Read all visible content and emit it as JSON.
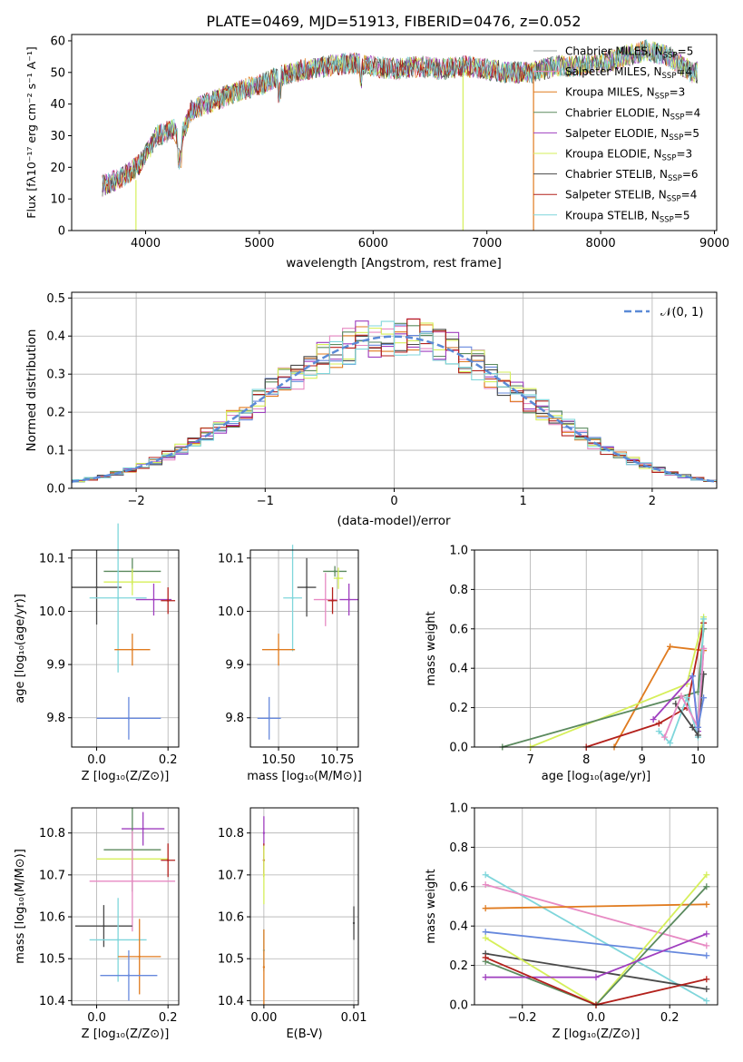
{
  "figure": {
    "title": "PLATE=0469, MJD=51913, FIBERID=0476, z=0.052"
  },
  "colors": {
    "chabrier_miles": "#9aa3a3",
    "salpeter_miles": "#e78ac3",
    "kroupa_miles": "#e07b1f",
    "chabrier_elodie": "#5b8a5e",
    "salpeter_elodie": "#9f3fbf",
    "kroupa_elodie": "#d6ef5a",
    "chabrier_stelib": "#4a4a4a",
    "salpeter_stelib": "#b3211c",
    "kroupa_stelib": "#7fd6db",
    "normal_curve": "#5b8ad6",
    "blue_extra": "#6688dd"
  },
  "chart_data": [
    {
      "type": "line",
      "panel": "spectrum",
      "title": "PLATE=0469, MJD=51913, FIBERID=0476, z=0.052",
      "xlabel": "wavelength [Angstrom, rest frame]",
      "ylabel": "Flux [fλ10⁻¹⁷ erg cm⁻² s⁻¹ A⁻¹]",
      "xlim": [
        3350,
        9020
      ],
      "ylim": [
        0,
        62
      ],
      "xticks": [
        "4000",
        "5000",
        "6000",
        "7000",
        "8000",
        "9000"
      ],
      "yticks": [
        "0",
        "10",
        "20",
        "30",
        "40",
        "50",
        "60"
      ],
      "legend": "top-right",
      "series": [
        {
          "name": "Chabrier MILES, N",
          "sub": "SSP",
          "tail": "=5",
          "color_key": "chabrier_miles"
        },
        {
          "name": "Salpeter MILES, N",
          "sub": "SSP",
          "tail": "=4",
          "color_key": "salpeter_miles"
        },
        {
          "name": "Kroupa MILES, N",
          "sub": "SSP",
          "tail": "=3",
          "color_key": "kroupa_miles"
        },
        {
          "name": "Chabrier ELODIE, N",
          "sub": "SSP",
          "tail": "=4",
          "color_key": "chabrier_elodie"
        },
        {
          "name": "Salpeter ELODIE, N",
          "sub": "SSP",
          "tail": "=5",
          "color_key": "salpeter_elodie"
        },
        {
          "name": "Kroupa ELODIE, N",
          "sub": "SSP",
          "tail": "=3",
          "color_key": "kroupa_elodie"
        },
        {
          "name": "Chabrier STELIB, N",
          "sub": "SSP",
          "tail": "=6",
          "color_key": "chabrier_stelib"
        },
        {
          "name": "Salpeter STELIB, N",
          "sub": "SSP",
          "tail": "=4",
          "color_key": "salpeter_stelib"
        },
        {
          "name": "Kroupa STELIB, N",
          "sub": "SSP",
          "tail": "=5",
          "color_key": "kroupa_stelib"
        }
      ],
      "continuum": [
        [
          3620,
          14
        ],
        [
          3800,
          17
        ],
        [
          3950,
          21
        ],
        [
          4100,
          30
        ],
        [
          4250,
          32
        ],
        [
          4300,
          28
        ],
        [
          4400,
          38
        ],
        [
          4600,
          41
        ],
        [
          4800,
          44
        ],
        [
          5000,
          46
        ],
        [
          5200,
          49
        ],
        [
          5400,
          51
        ],
        [
          5600,
          52
        ],
        [
          5800,
          53
        ],
        [
          6000,
          52
        ],
        [
          6200,
          51
        ],
        [
          6400,
          52
        ],
        [
          6600,
          51
        ],
        [
          6800,
          52
        ],
        [
          7000,
          51
        ],
        [
          7200,
          50
        ],
        [
          7400,
          50
        ],
        [
          7600,
          52
        ],
        [
          7800,
          52
        ],
        [
          8000,
          53
        ],
        [
          8200,
          55
        ],
        [
          8400,
          57
        ],
        [
          8600,
          55
        ],
        [
          8800,
          50
        ]
      ]
    },
    {
      "type": "histogram",
      "panel": "residuals",
      "xlabel": "(data-model)/error",
      "ylabel": "Normed distribution",
      "xlim": [
        -2.5,
        2.5
      ],
      "ylim": [
        0,
        0.515
      ],
      "xticks": [
        "−2",
        "−1",
        "0",
        "1",
        "2"
      ],
      "yticks": [
        "0.0",
        "0.1",
        "0.2",
        "0.3",
        "0.4",
        "0.5"
      ],
      "legend_label": "𝒩(0, 1)",
      "bin_width": 0.1,
      "grid": true
    },
    {
      "type": "scatter",
      "panel": "age-vs-Z",
      "xlabel": "Z [log₁₀(Z/Z⊙)]",
      "ylabel": "age  [log₁₀(age/yr)]",
      "xlim": [
        -0.07,
        0.23
      ],
      "ylim": [
        9.745,
        10.115
      ],
      "xticks": [
        "0.0",
        "0.2"
      ],
      "yticks": [
        "9.8",
        "9.9",
        "10.0",
        "10.1"
      ],
      "points": [
        {
          "color_key": "chabrier_elodie",
          "x": 0.1,
          "xerr": 0.08,
          "y": 10.075,
          "yerr": 0.025
        },
        {
          "color_key": "kroupa_elodie",
          "x": 0.1,
          "xerr": 0.08,
          "y": 10.055,
          "yerr": 0.025
        },
        {
          "color_key": "chabrier_stelib",
          "x": 0.0,
          "xerr": 0.07,
          "y": 10.045,
          "yerr": 0.07
        },
        {
          "color_key": "kroupa_stelib",
          "x": 0.06,
          "xerr": 0.08,
          "y": 10.025,
          "yerr": 0.14
        },
        {
          "color_key": "salpeter_elodie",
          "x": 0.16,
          "xerr": 0.05,
          "y": 10.022,
          "yerr": 0.03
        },
        {
          "color_key": "salpeter_stelib",
          "x": 0.2,
          "xerr": 0.02,
          "y": 10.02,
          "yerr": 0.025
        },
        {
          "color_key": "kroupa_miles",
          "x": 0.1,
          "xerr": 0.05,
          "y": 9.928,
          "yerr": 0.03
        },
        {
          "color_key": "blue_extra",
          "x": 0.09,
          "xerr": 0.09,
          "y": 9.799,
          "yerr": 0.04
        }
      ]
    },
    {
      "type": "scatter",
      "panel": "age-vs-mass",
      "xlabel": "mass [log₁₀(M/M⊙)]",
      "ylabel": "",
      "xlim": [
        10.38,
        10.84
      ],
      "ylim": [
        9.745,
        10.115
      ],
      "xticks": [
        "10.50",
        "10.75"
      ],
      "yticks": [
        "9.8",
        "9.9",
        "10.0",
        "10.1"
      ],
      "points": [
        {
          "color_key": "chabrier_stelib",
          "x": 10.62,
          "xerr": 0.04,
          "y": 10.045,
          "yerr": 0.055
        },
        {
          "color_key": "chabrier_elodie",
          "x": 10.74,
          "xerr": 0.05,
          "y": 10.075,
          "yerr": 0.01
        },
        {
          "color_key": "kroupa_elodie",
          "x": 10.755,
          "xerr": 0.02,
          "y": 10.062,
          "yerr": 0.02
        },
        {
          "color_key": "salpeter_elodie",
          "x": 10.8,
          "xerr": 0.04,
          "y": 10.022,
          "yerr": 0.03
        },
        {
          "color_key": "salpeter_miles",
          "x": 10.7,
          "xerr": 0.05,
          "y": 10.022,
          "yerr": 0.05
        },
        {
          "color_key": "salpeter_stelib",
          "x": 10.73,
          "xerr": 0.02,
          "y": 10.02,
          "yerr": 0.025
        },
        {
          "color_key": "kroupa_stelib",
          "x": 10.56,
          "xerr": 0.04,
          "y": 10.025,
          "yerr": 0.1
        },
        {
          "color_key": "kroupa_miles",
          "x": 10.5,
          "xerr": 0.07,
          "y": 9.928,
          "yerr": 0.03
        },
        {
          "color_key": "blue_extra",
          "x": 10.46,
          "xerr": 0.05,
          "y": 9.799,
          "yerr": 0.04
        }
      ]
    },
    {
      "type": "line",
      "panel": "weight-vs-age",
      "xlabel": "age  [log₁₀(age/yr)]",
      "ylabel": "mass weight",
      "xlim": [
        6.0,
        10.35
      ],
      "ylim": [
        0,
        1.0
      ],
      "xticks": [
        "7",
        "8",
        "9",
        "10"
      ],
      "yticks": [
        "0.0",
        "0.2",
        "0.4",
        "0.6",
        "0.8",
        "1.0"
      ],
      "series": [
        {
          "color_key": "kroupa_miles",
          "points": [
            [
              8.5,
              0.0
            ],
            [
              9.5,
              0.51
            ],
            [
              10.1,
              0.49
            ]
          ]
        },
        {
          "color_key": "kroupa_elodie",
          "points": [
            [
              7.0,
              0.0
            ],
            [
              9.8,
              0.32
            ],
            [
              10.1,
              0.66
            ]
          ]
        },
        {
          "color_key": "chabrier_elodie",
          "points": [
            [
              6.5,
              0.0
            ],
            [
              10.0,
              0.28
            ],
            [
              10.1,
              0.6
            ]
          ]
        },
        {
          "color_key": "salpeter_stelib",
          "points": [
            [
              8.0,
              0.0
            ],
            [
              9.3,
              0.12
            ],
            [
              9.8,
              0.2
            ],
            [
              10.1,
              0.63
            ]
          ]
        },
        {
          "color_key": "salpeter_elodie",
          "points": [
            [
              9.2,
              0.14
            ],
            [
              9.9,
              0.36
            ],
            [
              10.0,
              0.08
            ],
            [
              10.1,
              0.5
            ]
          ]
        },
        {
          "color_key": "kroupa_stelib",
          "points": [
            [
              9.3,
              0.08
            ],
            [
              9.5,
              0.02
            ],
            [
              9.8,
              0.25
            ],
            [
              10.0,
              0.05
            ],
            [
              10.1,
              0.65
            ]
          ]
        },
        {
          "color_key": "chabrier_stelib",
          "points": [
            [
              9.6,
              0.22
            ],
            [
              9.9,
              0.1
            ],
            [
              10.0,
              0.06
            ],
            [
              10.1,
              0.37
            ]
          ]
        },
        {
          "color_key": "salpeter_miles",
          "points": [
            [
              9.4,
              0.05
            ],
            [
              9.7,
              0.26
            ],
            [
              10.0,
              0.1
            ],
            [
              10.1,
              0.5
            ]
          ]
        },
        {
          "color_key": "blue_extra",
          "points": [
            [
              9.9,
              0.36
            ],
            [
              10.0,
              0.1
            ],
            [
              10.1,
              0.25
            ]
          ]
        }
      ]
    },
    {
      "type": "scatter",
      "panel": "mass-vs-Z",
      "xlabel": "Z [log₁₀(Z/Z⊙)]",
      "ylabel": "mass [log₁₀(M/M⊙)]",
      "xlim": [
        -0.07,
        0.23
      ],
      "ylim": [
        10.39,
        10.86
      ],
      "xticks": [
        "0.0",
        "0.2"
      ],
      "yticks": [
        "10.4",
        "10.5",
        "10.6",
        "10.7",
        "10.8"
      ],
      "points": [
        {
          "color_key": "salpeter_elodie",
          "x": 0.13,
          "xerr": 0.06,
          "y": 10.81,
          "yerr": 0.04
        },
        {
          "color_key": "chabrier_elodie",
          "x": 0.1,
          "xerr": 0.08,
          "y": 10.76,
          "yerr": 0.1
        },
        {
          "color_key": "kroupa_elodie",
          "x": 0.1,
          "xerr": 0.1,
          "y": 10.738,
          "yerr": 0.04
        },
        {
          "color_key": "salpeter_stelib",
          "x": 0.2,
          "xerr": 0.02,
          "y": 10.735,
          "yerr": 0.04
        },
        {
          "color_key": "salpeter_miles",
          "x": 0.1,
          "xerr": 0.12,
          "y": 10.685,
          "yerr": 0.12
        },
        {
          "color_key": "chabrier_stelib",
          "x": 0.02,
          "xerr": 0.08,
          "y": 10.578,
          "yerr": 0.05
        },
        {
          "color_key": "kroupa_stelib",
          "x": 0.06,
          "xerr": 0.08,
          "y": 10.545,
          "yerr": 0.1
        },
        {
          "color_key": "kroupa_miles",
          "x": 0.12,
          "xerr": 0.06,
          "y": 10.505,
          "yerr": 0.09
        },
        {
          "color_key": "blue_extra",
          "x": 0.09,
          "xerr": 0.08,
          "y": 10.46,
          "yerr": 0.06
        }
      ]
    },
    {
      "type": "scatter",
      "panel": "mass-vs-EBV",
      "xlabel": "E(B-V)",
      "ylabel": "",
      "xlim": [
        -0.0015,
        0.0105
      ],
      "ylim": [
        10.39,
        10.86
      ],
      "xticks": [
        "0.00",
        "0.01"
      ],
      "yticks": [
        "10.4",
        "10.5",
        "10.6",
        "10.7",
        "10.8"
      ],
      "points": [
        {
          "color_key": "salpeter_elodie",
          "x": 0.0,
          "y": 10.8,
          "yerr": 0.04
        },
        {
          "color_key": "salpeter_stelib",
          "x": 0.0,
          "y": 10.735,
          "yerr": 0.04
        },
        {
          "color_key": "kroupa_elodie",
          "x": 0.0,
          "y": 10.7,
          "yerr": 0.07
        },
        {
          "color_key": "kroupa_stelib",
          "x": 0.0,
          "y": 10.52,
          "yerr": 0.05
        },
        {
          "color_key": "kroupa_miles",
          "x": 0.0,
          "y": 10.48,
          "yerr": 0.09
        },
        {
          "color_key": "chabrier_stelib",
          "x": 0.01,
          "y": 10.585,
          "yerr": 0.04
        }
      ]
    },
    {
      "type": "line",
      "panel": "weight-vs-Z",
      "xlabel": "Z [log₁₀(Z/Z⊙)]",
      "ylabel": "mass weight",
      "xlim": [
        -0.33,
        0.33
      ],
      "ylim": [
        0,
        1.0
      ],
      "xticks": [
        "−0.2",
        "0.0",
        "0.2"
      ],
      "yticks": [
        "0.0",
        "0.2",
        "0.4",
        "0.6",
        "0.8",
        "1.0"
      ],
      "series": [
        {
          "color_key": "kroupa_stelib",
          "points": [
            [
              -0.3,
              0.66
            ],
            [
              0.3,
              0.02
            ]
          ]
        },
        {
          "color_key": "salpeter_miles",
          "points": [
            [
              -0.3,
              0.61
            ],
            [
              0.3,
              0.3
            ]
          ]
        },
        {
          "color_key": "kroupa_miles",
          "points": [
            [
              -0.3,
              0.49
            ],
            [
              0.3,
              0.51
            ]
          ]
        },
        {
          "color_key": "blue_extra",
          "points": [
            [
              -0.3,
              0.37
            ],
            [
              0.3,
              0.25
            ]
          ]
        },
        {
          "color_key": "chabrier_stelib",
          "points": [
            [
              -0.3,
              0.26
            ],
            [
              0.3,
              0.08
            ]
          ]
        },
        {
          "color_key": "kroupa_elodie",
          "points": [
            [
              -0.3,
              0.34
            ],
            [
              0.0,
              0.0
            ],
            [
              0.3,
              0.66
            ]
          ]
        },
        {
          "color_key": "chabrier_elodie",
          "points": [
            [
              -0.3,
              0.22
            ],
            [
              0.0,
              0.0
            ],
            [
              0.3,
              0.6
            ]
          ]
        },
        {
          "color_key": "salpeter_elodie",
          "points": [
            [
              -0.3,
              0.14
            ],
            [
              0.0,
              0.14
            ],
            [
              0.3,
              0.36
            ]
          ]
        },
        {
          "color_key": "salpeter_stelib",
          "points": [
            [
              -0.3,
              0.24
            ],
            [
              0.0,
              0.0
            ],
            [
              0.3,
              0.13
            ]
          ]
        }
      ]
    }
  ]
}
